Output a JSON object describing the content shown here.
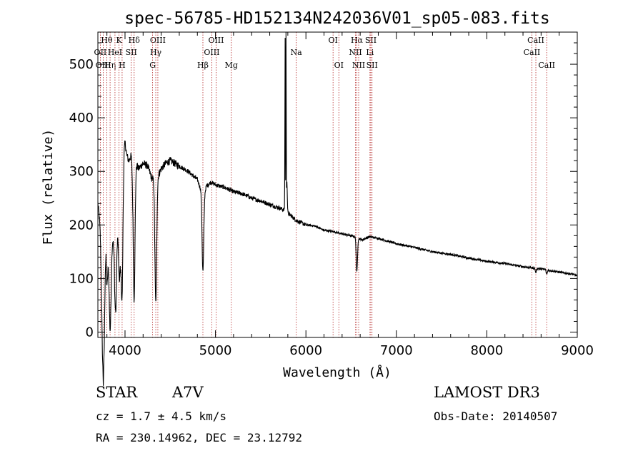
{
  "chart_data": {
    "type": "line",
    "title": "spec-56785-HD152134N242036V01_sp05-083.fits",
    "xlabel": "Wavelength (Å)",
    "ylabel": "Flux (relative)",
    "xlim": [
      3700,
      9000
    ],
    "ylim": [
      -10,
      560
    ],
    "xticks": [
      4000,
      5000,
      6000,
      7000,
      8000,
      9000
    ],
    "yticks": [
      0,
      100,
      200,
      300,
      400,
      500
    ],
    "series": [
      {
        "name": "flux",
        "anchors": [
          [
            3700,
            240
          ],
          [
            3740,
            180
          ],
          [
            3760,
            60
          ],
          [
            3790,
            265
          ],
          [
            3820,
            180
          ],
          [
            3850,
            150
          ],
          [
            3880,
            225
          ],
          [
            3900,
            120
          ],
          [
            3930,
            250
          ],
          [
            3950,
            150
          ],
          [
            3980,
            300
          ],
          [
            3990,
            340
          ],
          [
            4000,
            355
          ],
          [
            4020,
            330
          ],
          [
            4040,
            320
          ],
          [
            4070,
            330
          ],
          [
            4100,
            250
          ],
          [
            4120,
            315
          ],
          [
            4150,
            305
          ],
          [
            4200,
            315
          ],
          [
            4250,
            310
          ],
          [
            4280,
            295
          ],
          [
            4300,
            285
          ],
          [
            4320,
            290
          ],
          [
            4340,
            275
          ],
          [
            4360,
            290
          ],
          [
            4400,
            305
          ],
          [
            4450,
            315
          ],
          [
            4500,
            320
          ],
          [
            4600,
            310
          ],
          [
            4700,
            300
          ],
          [
            4750,
            292
          ],
          [
            4800,
            285
          ],
          [
            4830,
            270
          ],
          [
            4870,
            255
          ],
          [
            4900,
            272
          ],
          [
            4950,
            280
          ],
          [
            5000,
            275
          ],
          [
            5100,
            270
          ],
          [
            5200,
            262
          ],
          [
            5300,
            258
          ],
          [
            5400,
            250
          ],
          [
            5500,
            245
          ],
          [
            5600,
            238
          ],
          [
            5700,
            232
          ],
          [
            5760,
            228
          ],
          [
            5800,
            222
          ],
          [
            5850,
            215
          ],
          [
            5900,
            208
          ],
          [
            6000,
            200
          ],
          [
            6100,
            198
          ],
          [
            6200,
            190
          ],
          [
            6300,
            188
          ],
          [
            6400,
            183
          ],
          [
            6500,
            180
          ],
          [
            6540,
            178
          ],
          [
            6580,
            175
          ],
          [
            6620,
            172
          ],
          [
            6700,
            178
          ],
          [
            6800,
            175
          ],
          [
            7000,
            165
          ],
          [
            7200,
            158
          ],
          [
            7400,
            150
          ],
          [
            7600,
            145
          ],
          [
            7800,
            138
          ],
          [
            8000,
            132
          ],
          [
            8200,
            128
          ],
          [
            8400,
            122
          ],
          [
            8600,
            118
          ],
          [
            8800,
            112
          ],
          [
            8950,
            108
          ],
          [
            9000,
            105
          ]
        ],
        "absorption_features": [
          [
            3750,
            150,
            12
          ],
          [
            3770,
            110,
            8
          ],
          [
            3798,
            150,
            12
          ],
          [
            3835,
            160,
            10
          ],
          [
            3889,
            120,
            12
          ],
          [
            3934,
            130,
            8
          ],
          [
            3968,
            175,
            9
          ],
          [
            4101,
            190,
            10
          ],
          [
            4340,
            220,
            10
          ],
          [
            4861,
            145,
            9
          ],
          [
            6563,
            65,
            7
          ],
          [
            8542,
            8,
            6
          ],
          [
            8662,
            8,
            6
          ]
        ],
        "emission_features": [
          [
            5770,
            325,
            2.5
          ],
          [
            5780,
            335,
            2
          ],
          [
            5790,
            60,
            4
          ]
        ]
      }
    ],
    "spectral_lines": [
      {
        "label": "Hθ",
        "wave": 3798,
        "row": 1
      },
      {
        "label": "Hη",
        "wave": 3835,
        "row": 3
      },
      {
        "label": "OII",
        "wave": 3727,
        "row": 2
      },
      {
        "label": "OIII",
        "wave": 3760,
        "row": 3
      },
      {
        "label": "HeI",
        "wave": 3889,
        "row": 2
      },
      {
        "label": "K",
        "wave": 3934,
        "row": 1
      },
      {
        "label": "H",
        "wave": 3968,
        "row": 3
      },
      {
        "label": "SII",
        "wave": 4069,
        "row": 2
      },
      {
        "label": "Hδ",
        "wave": 4101,
        "row": 1
      },
      {
        "label": "OIII",
        "wave": 4363,
        "row": 1
      },
      {
        "label": "Hγ",
        "wave": 4340,
        "row": 2
      },
      {
        "label": "G",
        "wave": 4305,
        "row": 3
      },
      {
        "label": "Hβ",
        "wave": 4861,
        "row": 3
      },
      {
        "label": "OIII",
        "wave": 5007,
        "row": 1
      },
      {
        "label": "OIII",
        "wave": 4959,
        "row": 2
      },
      {
        "label": "Mg",
        "wave": 5175,
        "row": 3
      },
      {
        "label": "Na",
        "wave": 5893,
        "row": 2
      },
      {
        "label": "OI",
        "wave": 6300,
        "row": 1
      },
      {
        "label": "OI",
        "wave": 6364,
        "row": 3
      },
      {
        "label": "Hα",
        "wave": 6563,
        "row": 1
      },
      {
        "label": "NII",
        "wave": 6548,
        "row": 2
      },
      {
        "label": "NII",
        "wave": 6583,
        "row": 3
      },
      {
        "label": "SII",
        "wave": 6717,
        "row": 1
      },
      {
        "label": "Li",
        "wave": 6708,
        "row": 2
      },
      {
        "label": "SII",
        "wave": 6731,
        "row": 3
      },
      {
        "label": "CaII",
        "wave": 8542,
        "row": 1
      },
      {
        "label": "CaII",
        "wave": 8498,
        "row": 2
      },
      {
        "label": "CaII",
        "wave": 8662,
        "row": 3
      }
    ]
  },
  "info": {
    "class_label": "STAR",
    "subclass": "A7V",
    "survey": "LAMOST DR3",
    "redshift": "cz = 1.7 ± 4.5 km/s",
    "obs_date": "Obs-Date: 20140507",
    "coords": "RA = 230.14962, DEC =  23.12792"
  }
}
